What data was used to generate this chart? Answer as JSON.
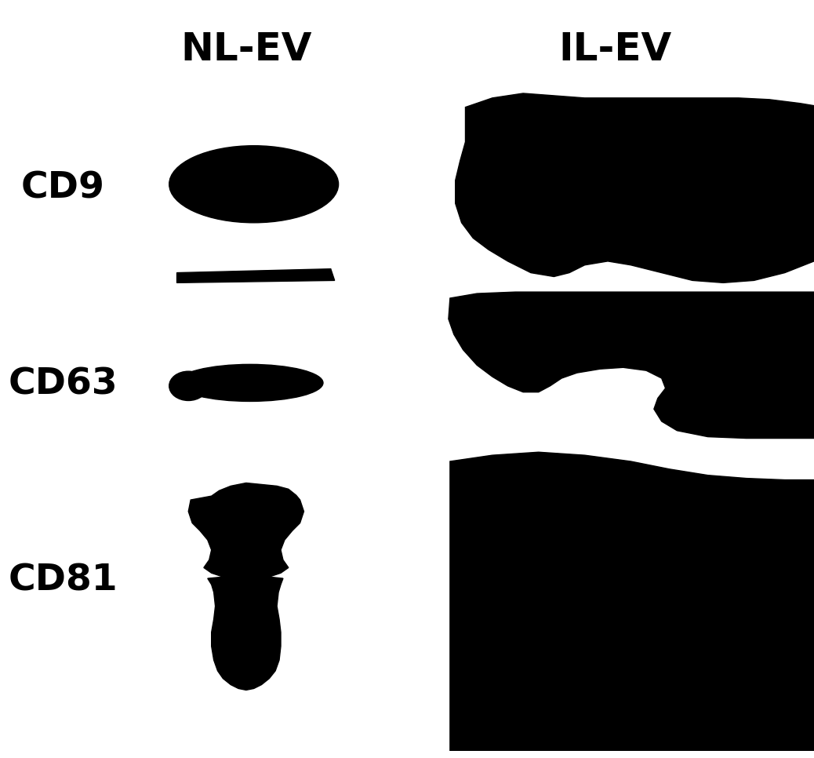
{
  "title_nl": "NL-EV",
  "title_il": "IL-EV",
  "labels": [
    "CD9",
    "CD63",
    "CD81"
  ],
  "bg_color": "#ffffff",
  "band_color": "#000000",
  "title_fontsize": 36,
  "label_fontsize": 34,
  "figsize": [
    10.38,
    9.66
  ],
  "dpi": 100
}
